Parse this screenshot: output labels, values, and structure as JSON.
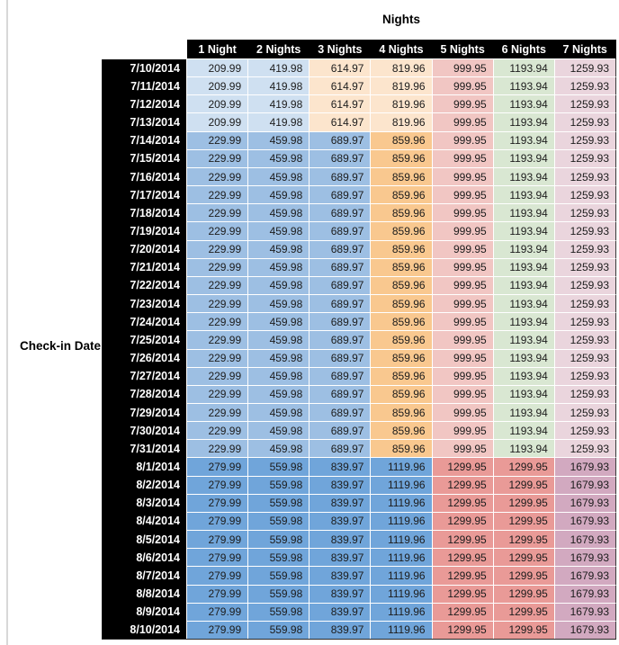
{
  "title": "Nights",
  "row_axis_label": "Check-in Date",
  "colors": {
    "header_bg": "#000000",
    "header_text": "#ffffff",
    "value_text": "#1c1c1c",
    "page_divider": "#d8d8d8",
    "light_blue": "#cfe0f1",
    "med_blue": "#9dbfe3",
    "dark_blue": "#70a5da",
    "light_orange": "#fce5cd",
    "med_orange": "#f9c88f",
    "light_red": "#f1c6c3",
    "med_red": "#e99a97",
    "light_green": "#d9e7d2",
    "light_pink": "#ead5dd",
    "med_pink": "#d2a9c0"
  },
  "bands": {
    "low": [
      "light_blue",
      "light_blue",
      "light_orange",
      "light_orange",
      "light_red",
      "light_green",
      "light_pink"
    ],
    "mid": [
      "med_blue",
      "med_blue",
      "med_blue",
      "med_orange",
      "light_red",
      "light_green",
      "light_pink"
    ],
    "high": [
      "dark_blue",
      "dark_blue",
      "dark_blue",
      "dark_blue",
      "med_red",
      "med_red",
      "med_pink"
    ]
  },
  "chart_data": {
    "type": "table",
    "title": "Nights",
    "row_label": "Check-in Date",
    "columns": [
      "1 Night",
      "2 Nights",
      "3 Nights",
      "4 Nights",
      "5 Nights",
      "6 Nights",
      "7 Nights"
    ],
    "rows": [
      {
        "date": "7/10/2014",
        "band": "low",
        "values": [
          209.99,
          419.98,
          614.97,
          819.96,
          999.95,
          1193.94,
          1259.93
        ]
      },
      {
        "date": "7/11/2014",
        "band": "low",
        "values": [
          209.99,
          419.98,
          614.97,
          819.96,
          999.95,
          1193.94,
          1259.93
        ]
      },
      {
        "date": "7/12/2014",
        "band": "low",
        "values": [
          209.99,
          419.98,
          614.97,
          819.96,
          999.95,
          1193.94,
          1259.93
        ]
      },
      {
        "date": "7/13/2014",
        "band": "low",
        "values": [
          209.99,
          419.98,
          614.97,
          819.96,
          999.95,
          1193.94,
          1259.93
        ]
      },
      {
        "date": "7/14/2014",
        "band": "mid",
        "values": [
          229.99,
          459.98,
          689.97,
          859.96,
          999.95,
          1193.94,
          1259.93
        ]
      },
      {
        "date": "7/15/2014",
        "band": "mid",
        "values": [
          229.99,
          459.98,
          689.97,
          859.96,
          999.95,
          1193.94,
          1259.93
        ]
      },
      {
        "date": "7/16/2014",
        "band": "mid",
        "values": [
          229.99,
          459.98,
          689.97,
          859.96,
          999.95,
          1193.94,
          1259.93
        ]
      },
      {
        "date": "7/17/2014",
        "band": "mid",
        "values": [
          229.99,
          459.98,
          689.97,
          859.96,
          999.95,
          1193.94,
          1259.93
        ]
      },
      {
        "date": "7/18/2014",
        "band": "mid",
        "values": [
          229.99,
          459.98,
          689.97,
          859.96,
          999.95,
          1193.94,
          1259.93
        ]
      },
      {
        "date": "7/19/2014",
        "band": "mid",
        "values": [
          229.99,
          459.98,
          689.97,
          859.96,
          999.95,
          1193.94,
          1259.93
        ]
      },
      {
        "date": "7/20/2014",
        "band": "mid",
        "values": [
          229.99,
          459.98,
          689.97,
          859.96,
          999.95,
          1193.94,
          1259.93
        ]
      },
      {
        "date": "7/21/2014",
        "band": "mid",
        "values": [
          229.99,
          459.98,
          689.97,
          859.96,
          999.95,
          1193.94,
          1259.93
        ]
      },
      {
        "date": "7/22/2014",
        "band": "mid",
        "values": [
          229.99,
          459.98,
          689.97,
          859.96,
          999.95,
          1193.94,
          1259.93
        ]
      },
      {
        "date": "7/23/2014",
        "band": "mid",
        "values": [
          229.99,
          459.98,
          689.97,
          859.96,
          999.95,
          1193.94,
          1259.93
        ]
      },
      {
        "date": "7/24/2014",
        "band": "mid",
        "values": [
          229.99,
          459.98,
          689.97,
          859.96,
          999.95,
          1193.94,
          1259.93
        ]
      },
      {
        "date": "7/25/2014",
        "band": "mid",
        "values": [
          229.99,
          459.98,
          689.97,
          859.96,
          999.95,
          1193.94,
          1259.93
        ]
      },
      {
        "date": "7/26/2014",
        "band": "mid",
        "values": [
          229.99,
          459.98,
          689.97,
          859.96,
          999.95,
          1193.94,
          1259.93
        ]
      },
      {
        "date": "7/27/2014",
        "band": "mid",
        "values": [
          229.99,
          459.98,
          689.97,
          859.96,
          999.95,
          1193.94,
          1259.93
        ]
      },
      {
        "date": "7/28/2014",
        "band": "mid",
        "values": [
          229.99,
          459.98,
          689.97,
          859.96,
          999.95,
          1193.94,
          1259.93
        ]
      },
      {
        "date": "7/29/2014",
        "band": "mid",
        "values": [
          229.99,
          459.98,
          689.97,
          859.96,
          999.95,
          1193.94,
          1259.93
        ]
      },
      {
        "date": "7/30/2014",
        "band": "mid",
        "values": [
          229.99,
          459.98,
          689.97,
          859.96,
          999.95,
          1193.94,
          1259.93
        ]
      },
      {
        "date": "7/31/2014",
        "band": "mid",
        "values": [
          229.99,
          459.98,
          689.97,
          859.96,
          999.95,
          1193.94,
          1259.93
        ]
      },
      {
        "date": "8/1/2014",
        "band": "high",
        "values": [
          279.99,
          559.98,
          839.97,
          1119.96,
          1299.95,
          1299.95,
          1679.93
        ]
      },
      {
        "date": "8/2/2014",
        "band": "high",
        "values": [
          279.99,
          559.98,
          839.97,
          1119.96,
          1299.95,
          1299.95,
          1679.93
        ]
      },
      {
        "date": "8/3/2014",
        "band": "high",
        "values": [
          279.99,
          559.98,
          839.97,
          1119.96,
          1299.95,
          1299.95,
          1679.93
        ]
      },
      {
        "date": "8/4/2014",
        "band": "high",
        "values": [
          279.99,
          559.98,
          839.97,
          1119.96,
          1299.95,
          1299.95,
          1679.93
        ]
      },
      {
        "date": "8/5/2014",
        "band": "high",
        "values": [
          279.99,
          559.98,
          839.97,
          1119.96,
          1299.95,
          1299.95,
          1679.93
        ]
      },
      {
        "date": "8/6/2014",
        "band": "high",
        "values": [
          279.99,
          559.98,
          839.97,
          1119.96,
          1299.95,
          1299.95,
          1679.93
        ]
      },
      {
        "date": "8/7/2014",
        "band": "high",
        "values": [
          279.99,
          559.98,
          839.97,
          1119.96,
          1299.95,
          1299.95,
          1679.93
        ]
      },
      {
        "date": "8/8/2014",
        "band": "high",
        "values": [
          279.99,
          559.98,
          839.97,
          1119.96,
          1299.95,
          1299.95,
          1679.93
        ]
      },
      {
        "date": "8/9/2014",
        "band": "high",
        "values": [
          279.99,
          559.98,
          839.97,
          1119.96,
          1299.95,
          1299.95,
          1679.93
        ]
      },
      {
        "date": "8/10/2014",
        "band": "high",
        "values": [
          279.99,
          559.98,
          839.97,
          1119.96,
          1299.95,
          1299.95,
          1679.93
        ]
      }
    ]
  }
}
